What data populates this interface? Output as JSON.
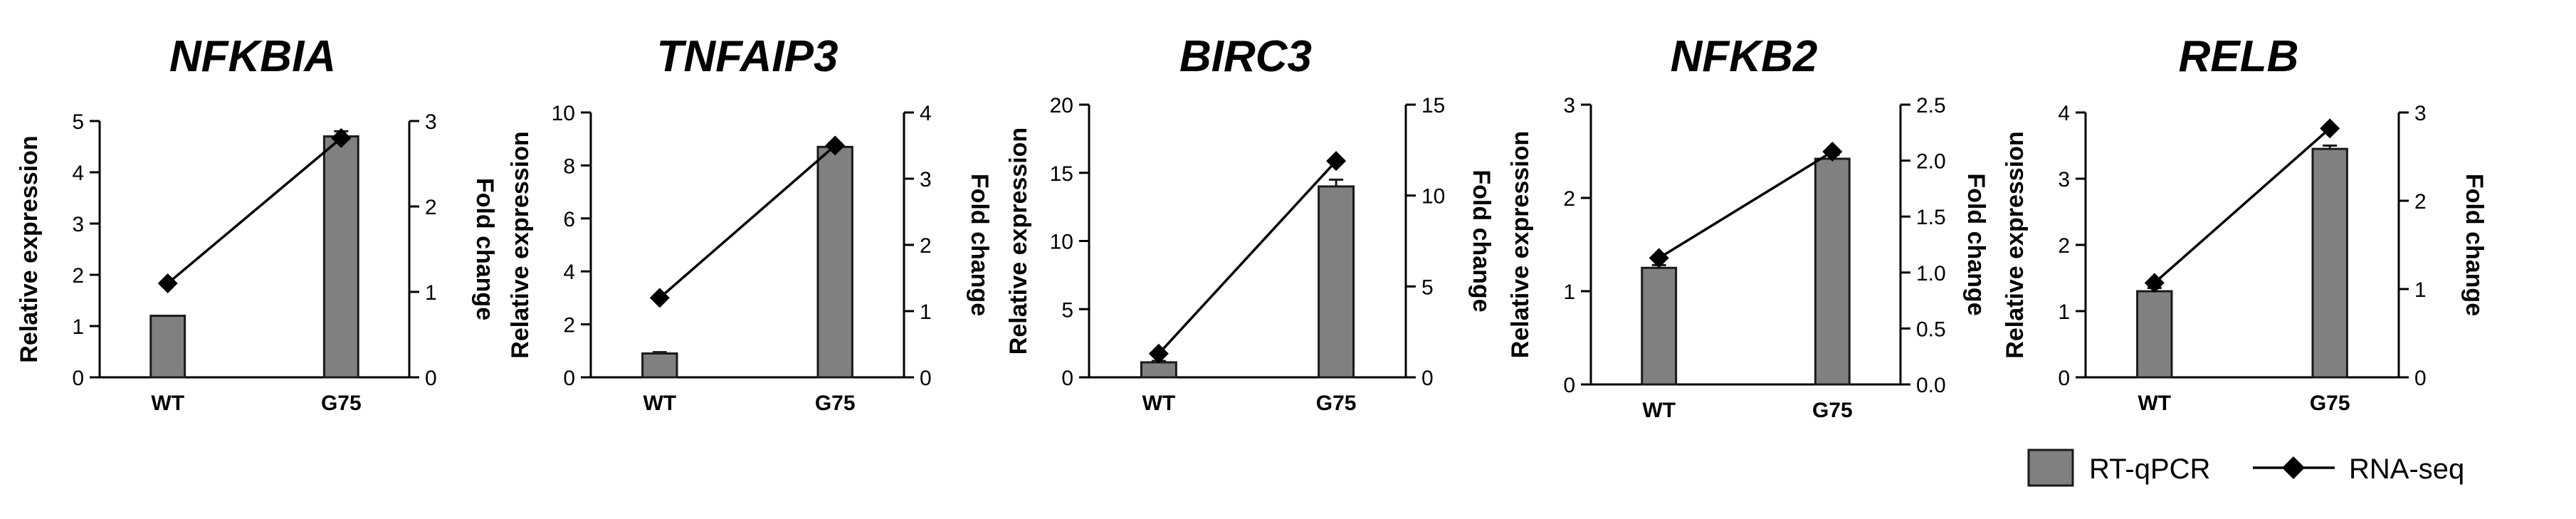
{
  "colors": {
    "bar_fill": "#808080",
    "bar_stroke": "#1a1a1a",
    "line": "#000000",
    "marker": "#000000",
    "axis": "#000000"
  },
  "legend": {
    "items": [
      {
        "label": "RT-qPCR",
        "kind": "bar"
      },
      {
        "label": "RNA-seq",
        "kind": "line-diamond"
      }
    ]
  },
  "chart_data": [
    {
      "type": "bar+line",
      "title": "NFKBIA",
      "ylabel": "Relative expression",
      "y2label": "Fold change",
      "categories": [
        "WT",
        "G75"
      ],
      "ylim": [
        0,
        5
      ],
      "yticks": [
        "0",
        "1",
        "2",
        "3",
        "4",
        "5"
      ],
      "y2lim": [
        0,
        3
      ],
      "y2ticks": [
        "0",
        "1",
        "2",
        "3"
      ],
      "bar_values": [
        1.2,
        4.7
      ],
      "bar_errors": [
        0.0,
        0.1
      ],
      "line_values": [
        1.1,
        2.8
      ]
    },
    {
      "type": "bar+line",
      "title": "TNFAIP3",
      "ylabel": "Relative expression",
      "y2label": "Fold change",
      "categories": [
        "WT",
        "G75"
      ],
      "ylim": [
        0,
        10
      ],
      "yticks": [
        "0",
        "2",
        "4",
        "6",
        "8",
        "10"
      ],
      "y2lim": [
        0,
        4
      ],
      "y2ticks": [
        "0",
        "1",
        "2",
        "3",
        "4"
      ],
      "bar_values": [
        0.9,
        8.7
      ],
      "bar_errors": [
        0.05,
        0.15
      ],
      "line_values": [
        1.2,
        3.5
      ]
    },
    {
      "type": "bar+line",
      "title": "BIRC3",
      "ylabel": "Relative expression",
      "y2label": "Fold change",
      "categories": [
        "WT",
        "G75"
      ],
      "ylim": [
        0,
        20
      ],
      "yticks": [
        "0",
        "5",
        "10",
        "15",
        "20"
      ],
      "y2lim": [
        0,
        15
      ],
      "y2ticks": [
        "0",
        "5",
        "10",
        "15"
      ],
      "bar_values": [
        1.1,
        14.0
      ],
      "bar_errors": [
        0.1,
        0.5
      ],
      "line_values": [
        1.3,
        11.9
      ]
    },
    {
      "type": "bar+line",
      "title": "NFKB2",
      "ylabel": "Relative expression",
      "y2label": "Fold change",
      "categories": [
        "WT",
        "G75"
      ],
      "ylim": [
        0,
        3
      ],
      "yticks": [
        "0",
        "1",
        "2",
        "3"
      ],
      "y2lim": [
        0,
        2.5
      ],
      "y2ticks": [
        "0.0",
        "0.5",
        "1.0",
        "1.5",
        "2.0",
        "2.5"
      ],
      "bar_values": [
        1.25,
        2.42
      ],
      "bar_errors": [
        0.03,
        0.04
      ],
      "line_values": [
        1.13,
        2.08
      ]
    },
    {
      "type": "bar+line",
      "title": "RELB",
      "ylabel": "Relative expression",
      "y2label": "Fold change",
      "categories": [
        "WT",
        "G75"
      ],
      "ylim": [
        0,
        4
      ],
      "yticks": [
        "0",
        "1",
        "2",
        "3",
        "4"
      ],
      "y2lim": [
        0,
        3
      ],
      "y2ticks": [
        "0",
        "1",
        "2",
        "3"
      ],
      "bar_values": [
        1.3,
        3.45
      ],
      "bar_errors": [
        0.05,
        0.05
      ],
      "line_values": [
        1.07,
        2.82
      ]
    }
  ]
}
